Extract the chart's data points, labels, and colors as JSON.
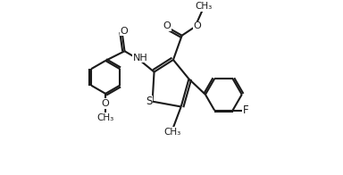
{
  "bg_color": "#ffffff",
  "line_color": "#1a1a1a",
  "line_width": 1.5,
  "figsize": [
    3.84,
    1.96
  ],
  "dpi": 100,
  "xlim": [
    0.0,
    1.0
  ],
  "ylim": [
    0.0,
    1.0
  ]
}
